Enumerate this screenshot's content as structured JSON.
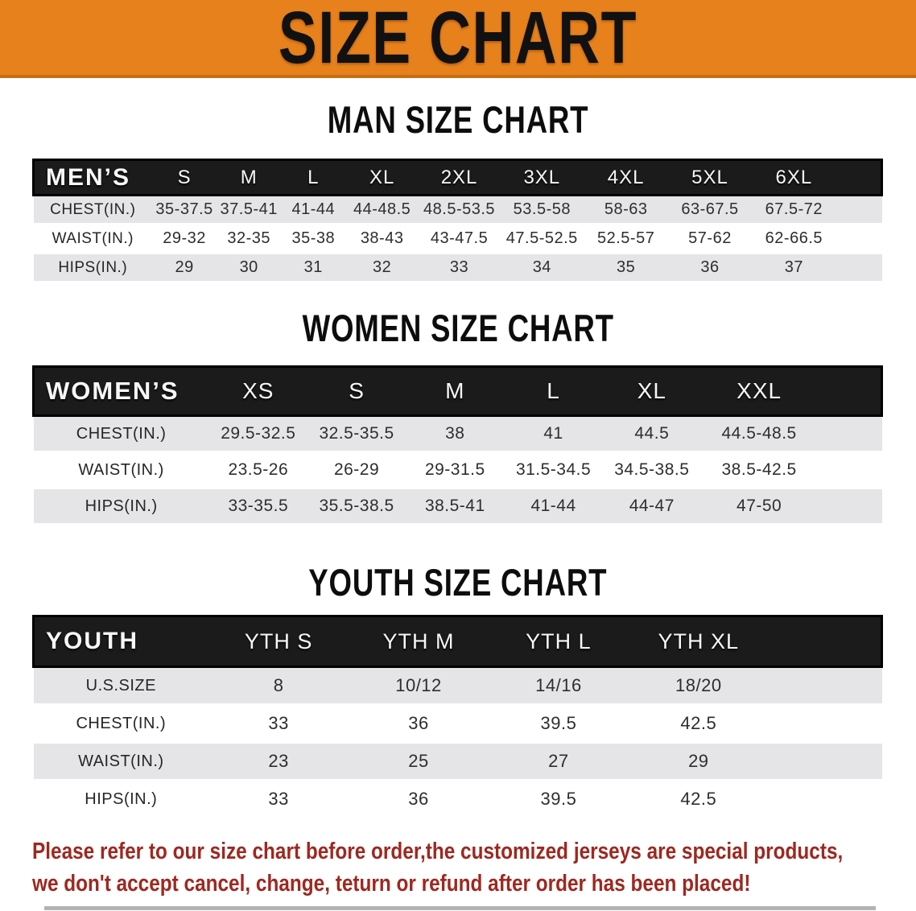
{
  "banner": {
    "title": "SIZE CHART"
  },
  "colors": {
    "banner_orange": "#E6811C",
    "header_bar_black": "#1b1b1b",
    "row_stripe_gray": "#E5E5E7",
    "disclaimer_red": "#9E2820"
  },
  "sections": [
    {
      "key": "men",
      "heading": "MAN SIZE CHART",
      "table": {
        "header": [
          "MEN’S",
          "S",
          "M",
          "L",
          "XL",
          "2XL",
          "3XL",
          "4XL",
          "5XL",
          "6XL"
        ],
        "rows": [
          [
            "CHEST(IN.)",
            "35-37.5",
            "37.5-41",
            "41-44",
            "44-48.5",
            "48.5-53.5",
            "53.5-58",
            "58-63",
            "63-67.5",
            "67.5-72"
          ],
          [
            "WAIST(IN.)",
            "29-32",
            "32-35",
            "35-38",
            "38-43",
            "43-47.5",
            "47.5-52.5",
            "52.5-57",
            "57-62",
            "62-66.5"
          ],
          [
            "HIPS(IN.)",
            "29",
            "30",
            "31",
            "32",
            "33",
            "34",
            "35",
            "36",
            "37"
          ]
        ]
      }
    },
    {
      "key": "women",
      "heading": "WOMEN SIZE CHART",
      "table": {
        "header": [
          "WOMEN’S",
          "XS",
          "S",
          "M",
          "L",
          "XL",
          "XXL"
        ],
        "rows": [
          [
            "CHEST(IN.)",
            "29.5-32.5",
            "32.5-35.5",
            "38",
            "41",
            "44.5",
            "44.5-48.5"
          ],
          [
            "WAIST(IN.)",
            "23.5-26",
            "26-29",
            "29-31.5",
            "31.5-34.5",
            "34.5-38.5",
            "38.5-42.5"
          ],
          [
            "HIPS(IN.)",
            "33-35.5",
            "35.5-38.5",
            "38.5-41",
            "41-44",
            "44-47",
            "47-50"
          ]
        ]
      }
    },
    {
      "key": "youth",
      "heading": "YOUTH SIZE CHART",
      "table": {
        "header": [
          "YOUTH",
          "YTH S",
          "YTH M",
          "YTH L",
          "YTH XL"
        ],
        "rows": [
          [
            "U.S.SIZE",
            "8",
            "10/12",
            "14/16",
            "18/20"
          ],
          [
            "CHEST(IN.)",
            "33",
            "36",
            "39.5",
            "42.5"
          ],
          [
            "WAIST(IN.)",
            "23",
            "25",
            "27",
            "29"
          ],
          [
            "HIPS(IN.)",
            "33",
            "36",
            "39.5",
            "42.5"
          ]
        ]
      }
    }
  ],
  "disclaimer": {
    "line1": "Please refer to our size chart before order,the customized jerseys are special products,",
    "line2": "we don't accept cancel, change, teturn or refund after order has been placed!"
  }
}
